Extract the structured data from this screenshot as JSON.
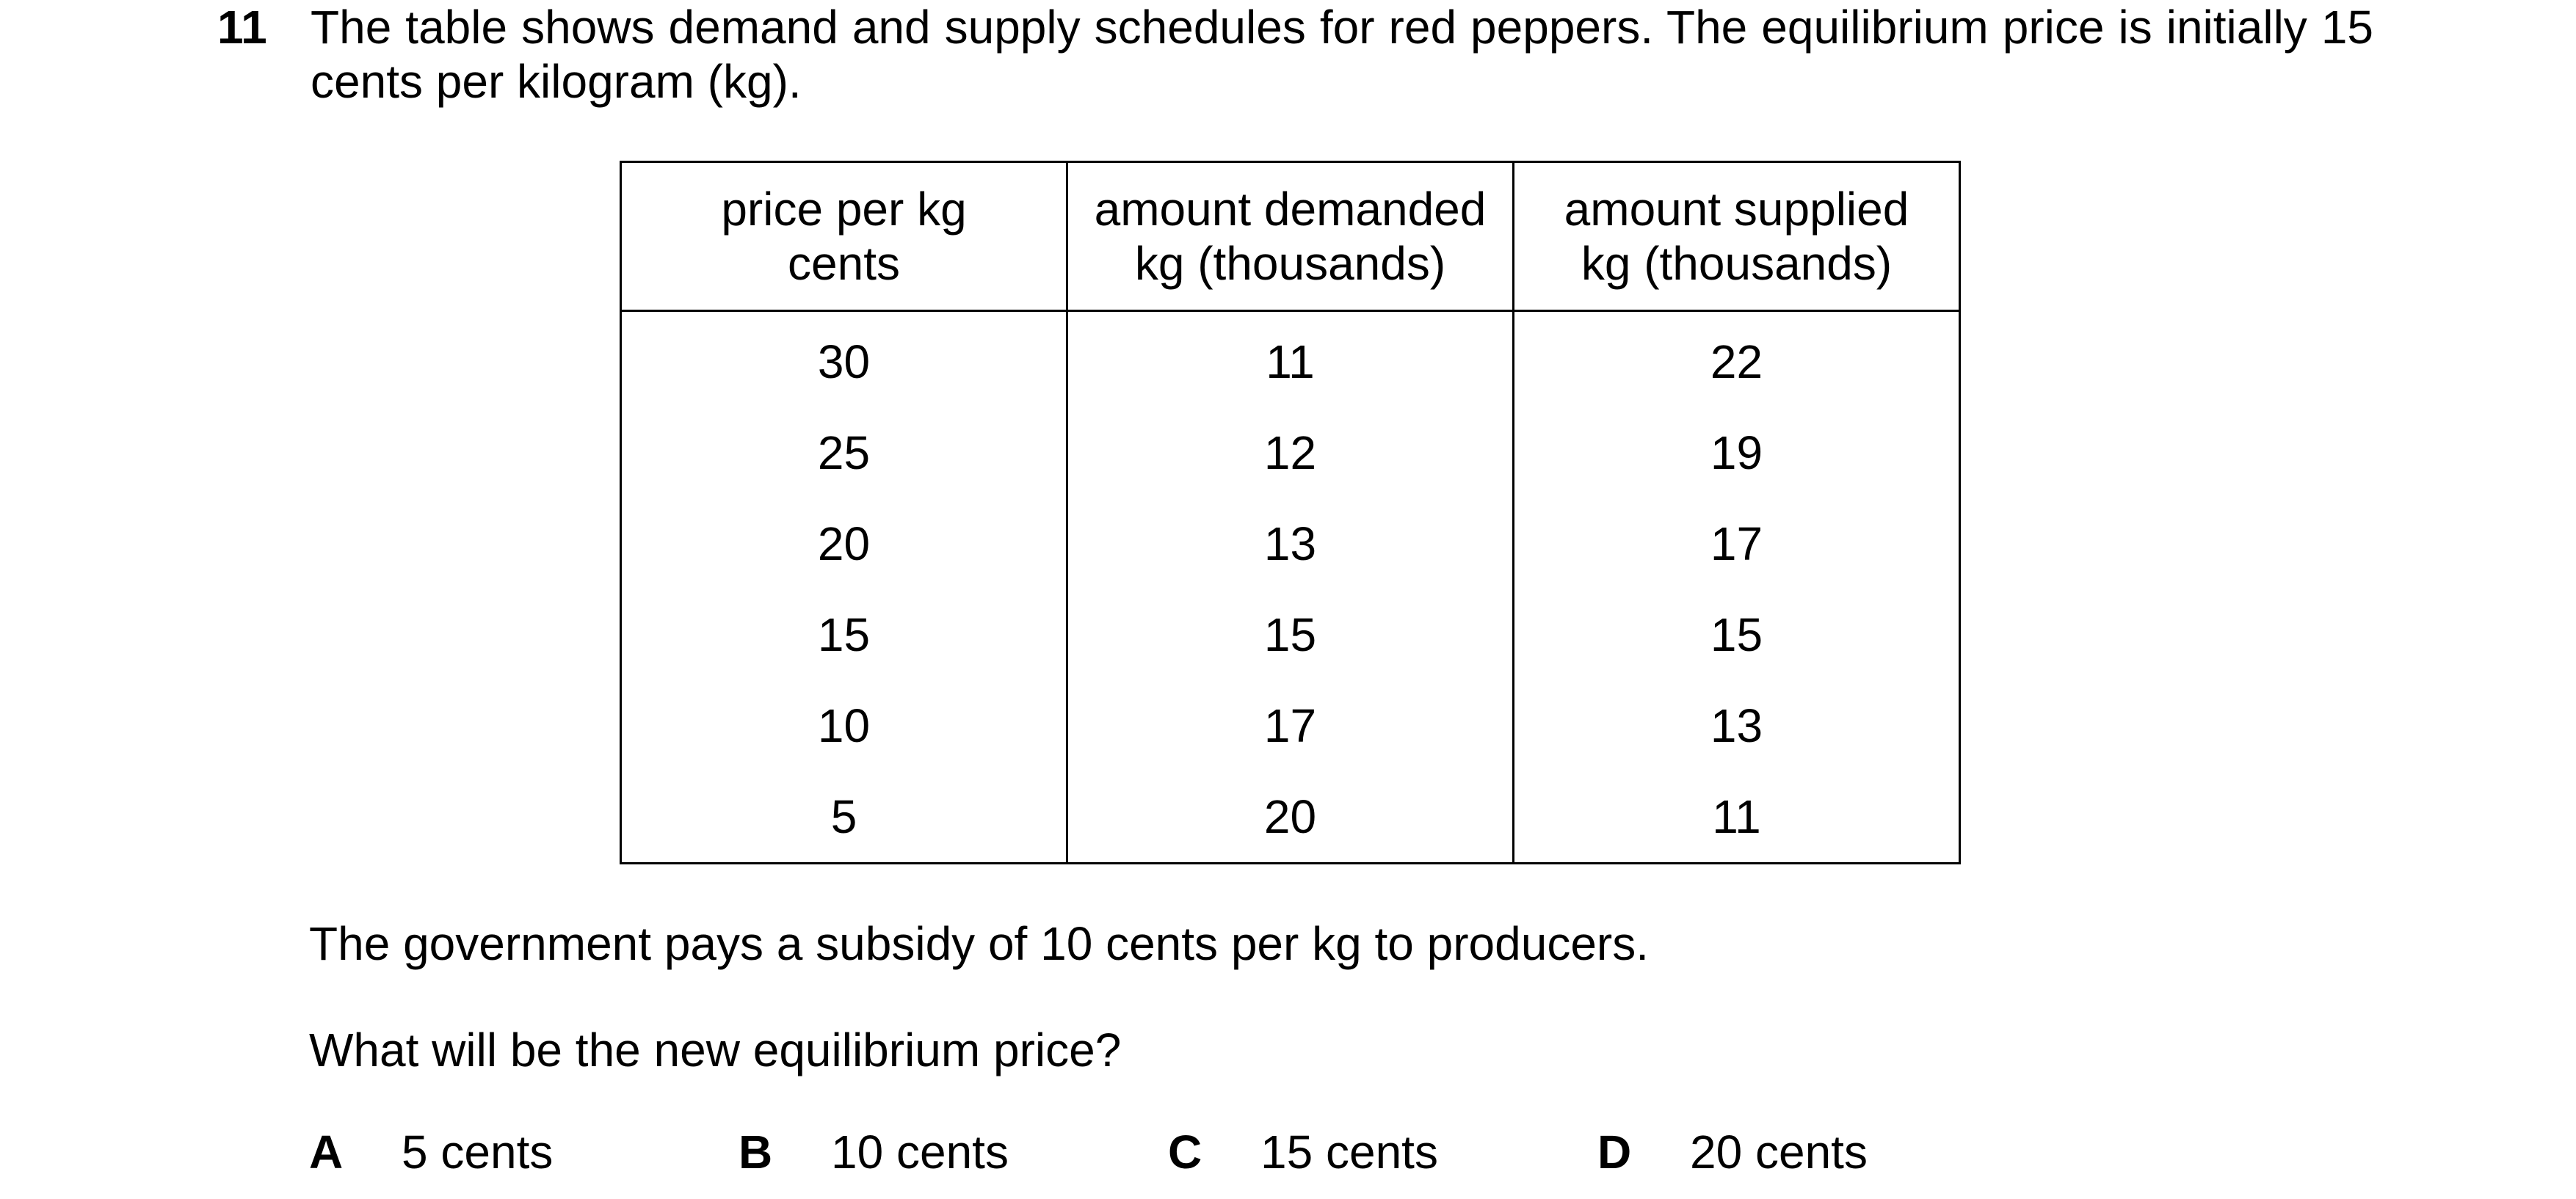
{
  "question": {
    "number": "11",
    "stem": "The table shows demand and supply schedules for red peppers. The equilibrium price is initially 15 cents per kilogram (kg)."
  },
  "table": {
    "headers": [
      [
        "price per kg",
        "cents"
      ],
      [
        "amount demanded",
        "kg (thousands)"
      ],
      [
        "amount supplied",
        "kg (thousands)"
      ]
    ],
    "rows": [
      [
        "30",
        "11",
        "22"
      ],
      [
        "25",
        "12",
        "19"
      ],
      [
        "20",
        "13",
        "17"
      ],
      [
        "15",
        "15",
        "15"
      ],
      [
        "10",
        "17",
        "13"
      ],
      [
        "5",
        "20",
        "11"
      ]
    ]
  },
  "subsidy_text": "The government pays a subsidy of 10 cents per kg to producers.",
  "prompt": "What will be the new equilibrium price?",
  "options": [
    {
      "letter": "A",
      "text": "5 cents"
    },
    {
      "letter": "B",
      "text": "10 cents"
    },
    {
      "letter": "C",
      "text": "15 cents"
    },
    {
      "letter": "D",
      "text": "20 cents"
    }
  ]
}
